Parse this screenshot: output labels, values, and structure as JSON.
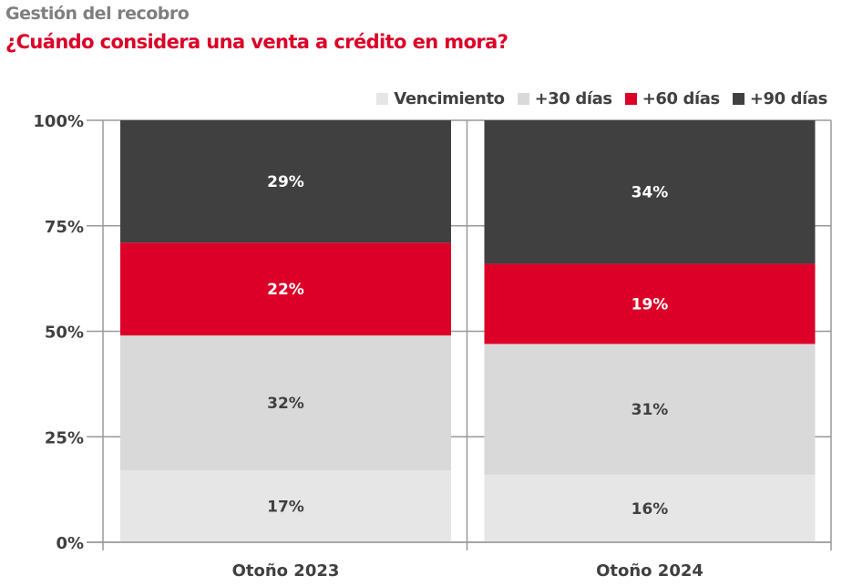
{
  "header": {
    "kicker": "Gestión del recobro",
    "title": "¿Cuándo considera una venta a crédito en mora?"
  },
  "chart_data": {
    "type": "bar",
    "stacked": true,
    "title": "¿Cuándo considera una venta a crédito en mora?",
    "subtitle": "Gestión del recobro",
    "xlabel": "",
    "ylabel": "",
    "ylim": [
      0,
      100
    ],
    "yticks": [
      0,
      25,
      50,
      75,
      100
    ],
    "ytick_labels": [
      "0%",
      "25%",
      "50%",
      "75%",
      "100%"
    ],
    "grid": true,
    "legend_position": "top-right",
    "categories": [
      "Otoño 2023",
      "Otoño 2024"
    ],
    "series": [
      {
        "name": "Vencimiento",
        "color": "#e6e6e6",
        "label_color": "#404040",
        "values": [
          17,
          16
        ],
        "labels": [
          "17%",
          "16%"
        ]
      },
      {
        "name": "+30 días",
        "color": "#d9d9d9",
        "label_color": "#404040",
        "values": [
          32,
          31
        ],
        "labels": [
          "32%",
          "31%"
        ]
      },
      {
        "name": "+60 días",
        "color": "#dc0028",
        "label_color": "#ffffff",
        "values": [
          22,
          19
        ],
        "labels": [
          "22%",
          "19%"
        ]
      },
      {
        "name": "+90 días",
        "color": "#404040",
        "label_color": "#ffffff",
        "values": [
          29,
          34
        ],
        "labels": [
          "29%",
          "34%"
        ]
      }
    ]
  }
}
